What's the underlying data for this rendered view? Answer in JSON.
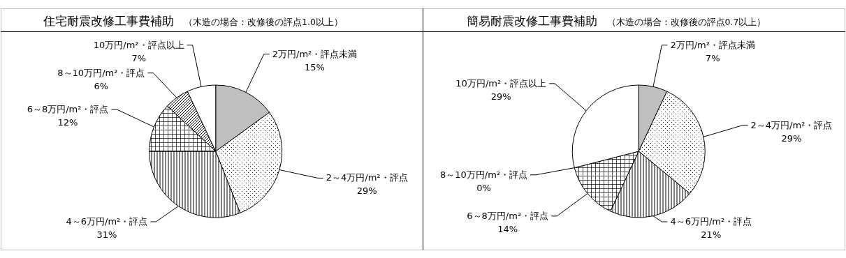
{
  "chart_data": [
    {
      "type": "pie",
      "title": "住宅耐震改修工事費補助",
      "subtitle": "（木造の場合：改修後の評点1.0以上）",
      "categories": [
        "2万円/m²・評点未満",
        "2～4万円/m²・評点",
        "4～6万円/m²・評点",
        "6～8万円/m²・評点",
        "8～10万円/m²・評点",
        "10万円/m²・評点以上"
      ],
      "values": [
        15,
        29,
        31,
        12,
        6,
        7
      ],
      "value_labels": [
        "15%",
        "29%",
        "31%",
        "12%",
        "6%",
        "7%"
      ],
      "colors": [
        "#bfbfbf",
        "#ffffff",
        "#ffffff",
        "#ffffff",
        "#ffffff",
        "#ffffff"
      ]
    },
    {
      "type": "pie",
      "title": "簡易耐震改修工事費補助",
      "subtitle": "（木造の場合：改修後の評点0.7以上）",
      "categories": [
        "2万円/m²・評点未満",
        "2～4万円/m²・評点",
        "4～6万円/m²・評点",
        "6～8万円/m²・評点",
        "8～10万円/m²・評点",
        "10万円/m²・評点以上"
      ],
      "values": [
        7,
        29,
        21,
        14,
        0,
        29
      ],
      "value_labels": [
        "7%",
        "29%",
        "21%",
        "14%",
        "0%",
        "29%"
      ],
      "colors": [
        "#bfbfbf",
        "#ffffff",
        "#ffffff",
        "#ffffff",
        "#ffffff",
        "#ffffff"
      ]
    }
  ]
}
